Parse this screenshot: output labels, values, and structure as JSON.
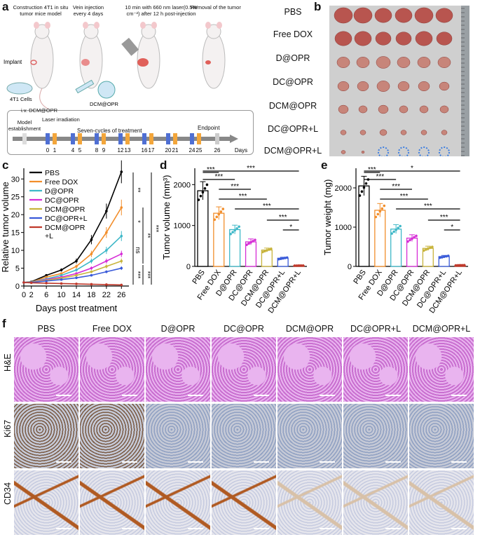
{
  "panels": {
    "a": "a",
    "b": "b",
    "c": "c",
    "d": "d",
    "e": "e",
    "f": "f"
  },
  "schematic": {
    "steps": [
      "Construction 4T1 in situ tumor mice model",
      "Vein injection every 4 days",
      "10 min with 660 nm laser(0.5W cm⁻²) after 12 h post-injection",
      "Removal of the tumor"
    ],
    "implant": "Implant",
    "cells": "4T1 Cells",
    "agent": "DCM@OPR",
    "timeline": {
      "iv": "i.v. DCM@OPR",
      "laser": "Laser irradiation",
      "model": "Model establishment",
      "cycles": "Seven-cycles of treatment",
      "endpoint": "Endpoint",
      "days_label": "Days",
      "days": [
        "0",
        "1",
        "4",
        "5",
        "8",
        "9",
        "12",
        "13",
        "16",
        "17",
        "20",
        "21",
        "24",
        "25",
        "26"
      ]
    }
  },
  "groups": [
    "PBS",
    "Free DOX",
    "D@OPR",
    "DC@OPR",
    "DCM@OPR",
    "DC@OPR+L",
    "DCM@OPR+L"
  ],
  "group_colors": [
    "#000000",
    "#f28e2b",
    "#3fb8c8",
    "#d62ed6",
    "#c8b43c",
    "#3a5bd9",
    "#c0392b"
  ],
  "chart_data": [
    {
      "type": "line",
      "xlabel": "Days post treatment",
      "ylabel": "Relative tumor volume",
      "x": [
        0,
        2,
        6,
        10,
        14,
        18,
        22,
        26
      ],
      "xticks": [
        "0",
        "2",
        "6",
        "10",
        "14",
        "18",
        "22",
        "26"
      ],
      "yticks": [
        "0",
        "5",
        "10",
        "15",
        "20",
        "25",
        "30"
      ],
      "ylim": [
        0,
        33
      ],
      "series": [
        {
          "name": "PBS",
          "values": [
            1,
            1.2,
            3,
            4.5,
            7,
            13,
            21,
            32
          ]
        },
        {
          "name": "Free DOX",
          "values": [
            1,
            1.1,
            2.5,
            3.5,
            5.5,
            9,
            15,
            22
          ]
        },
        {
          "name": "D@OPR",
          "values": [
            1,
            1.1,
            2,
            3,
            4.5,
            7,
            10,
            14
          ]
        },
        {
          "name": "DC@OPR",
          "values": [
            1,
            1.05,
            1.8,
            2.5,
            3.5,
            5,
            7,
            9
          ]
        },
        {
          "name": "DCM@OPR",
          "values": [
            1,
            1.05,
            1.6,
            2.2,
            3,
            4,
            5.5,
            7
          ]
        },
        {
          "name": "DC@OPR+L",
          "values": [
            1,
            1,
            1.4,
            1.8,
            2.3,
            3,
            4,
            5
          ]
        },
        {
          "name": "DCM@OPR+L",
          "values": [
            1,
            0.9,
            0.8,
            0.7,
            0.6,
            0.5,
            0.4,
            0.3
          ]
        }
      ],
      "legend_names": [
        "PBS",
        "Free DOX",
        "D@OPR",
        "DC@OPR",
        "DCM@OPR",
        "DC@OPR+L",
        "DCM@OPR+L"
      ],
      "sig": [
        "**",
        "*",
        "ns",
        "**",
        "***",
        "***",
        "***"
      ]
    },
    {
      "type": "bar",
      "ylabel": "Tumor volume (mm³)",
      "categories": [
        "PBS",
        "Free DOX",
        "D@OPR",
        "DC@OPR",
        "DCM@OPR",
        "DC@OPR+L",
        "DCM@OPR+L"
      ],
      "values": [
        1850,
        1300,
        900,
        600,
        400,
        200,
        20
      ],
      "yticks": [
        "0",
        "1000",
        "2000"
      ],
      "ylim": [
        0,
        2400
      ],
      "sig": [
        "***",
        "***",
        "***",
        "***",
        "***",
        "***",
        "***",
        "*"
      ]
    },
    {
      "type": "bar",
      "ylabel": "Tumor weight (mg)",
      "categories": [
        "PBS",
        "Free DOX",
        "D@OPR",
        "DC@OPR",
        "DCM@OPR",
        "DC@OPR+L",
        "DCM@OPR+L"
      ],
      "values": [
        2050,
        1430,
        950,
        720,
        460,
        250,
        30
      ],
      "yticks": [
        "0",
        "1000",
        "2000"
      ],
      "ylim": [
        0,
        2500
      ],
      "sig": [
        "***",
        "***",
        "***",
        "*",
        "***",
        "***",
        "***",
        "*"
      ]
    }
  ],
  "histology": {
    "rows": [
      "H&E",
      "Ki67",
      "CD34"
    ]
  }
}
